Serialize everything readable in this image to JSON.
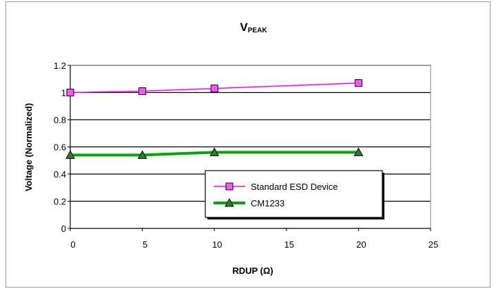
{
  "chart_data": {
    "type": "line",
    "title": "V",
    "title_subscript": "PEAK",
    "xlabel": "RDUP (Ω)",
    "ylabel": "Voltage (Normalized)",
    "xlim": [
      0,
      25
    ],
    "ylim": [
      0,
      1.2
    ],
    "x_ticks": [
      0,
      5,
      10,
      15,
      20,
      25
    ],
    "y_ticks": [
      0,
      0.2,
      0.4,
      0.6,
      0.8,
      1,
      1.2
    ],
    "x_tick_labels": [
      "0",
      "5",
      "10",
      "15",
      "20",
      "25"
    ],
    "y_tick_labels": [
      "0",
      "0.2",
      "0.4",
      "0.6",
      "0.8",
      "1",
      "1.2"
    ],
    "grid": "horizontal",
    "legend_position": "bottom-right",
    "series": [
      {
        "name": "Standard ESD Device",
        "x": [
          0,
          5,
          10,
          20
        ],
        "values": [
          1.0,
          1.01,
          1.03,
          1.07
        ],
        "color": "#ff00ff",
        "marker": "square",
        "marker_fill": "#ff55ff"
      },
      {
        "name": "CM1233",
        "x": [
          0,
          5,
          10,
          20
        ],
        "values": [
          0.54,
          0.54,
          0.56,
          0.56
        ],
        "color": "#00aa00",
        "marker": "triangle",
        "marker_fill": "#2e7d32"
      }
    ]
  }
}
